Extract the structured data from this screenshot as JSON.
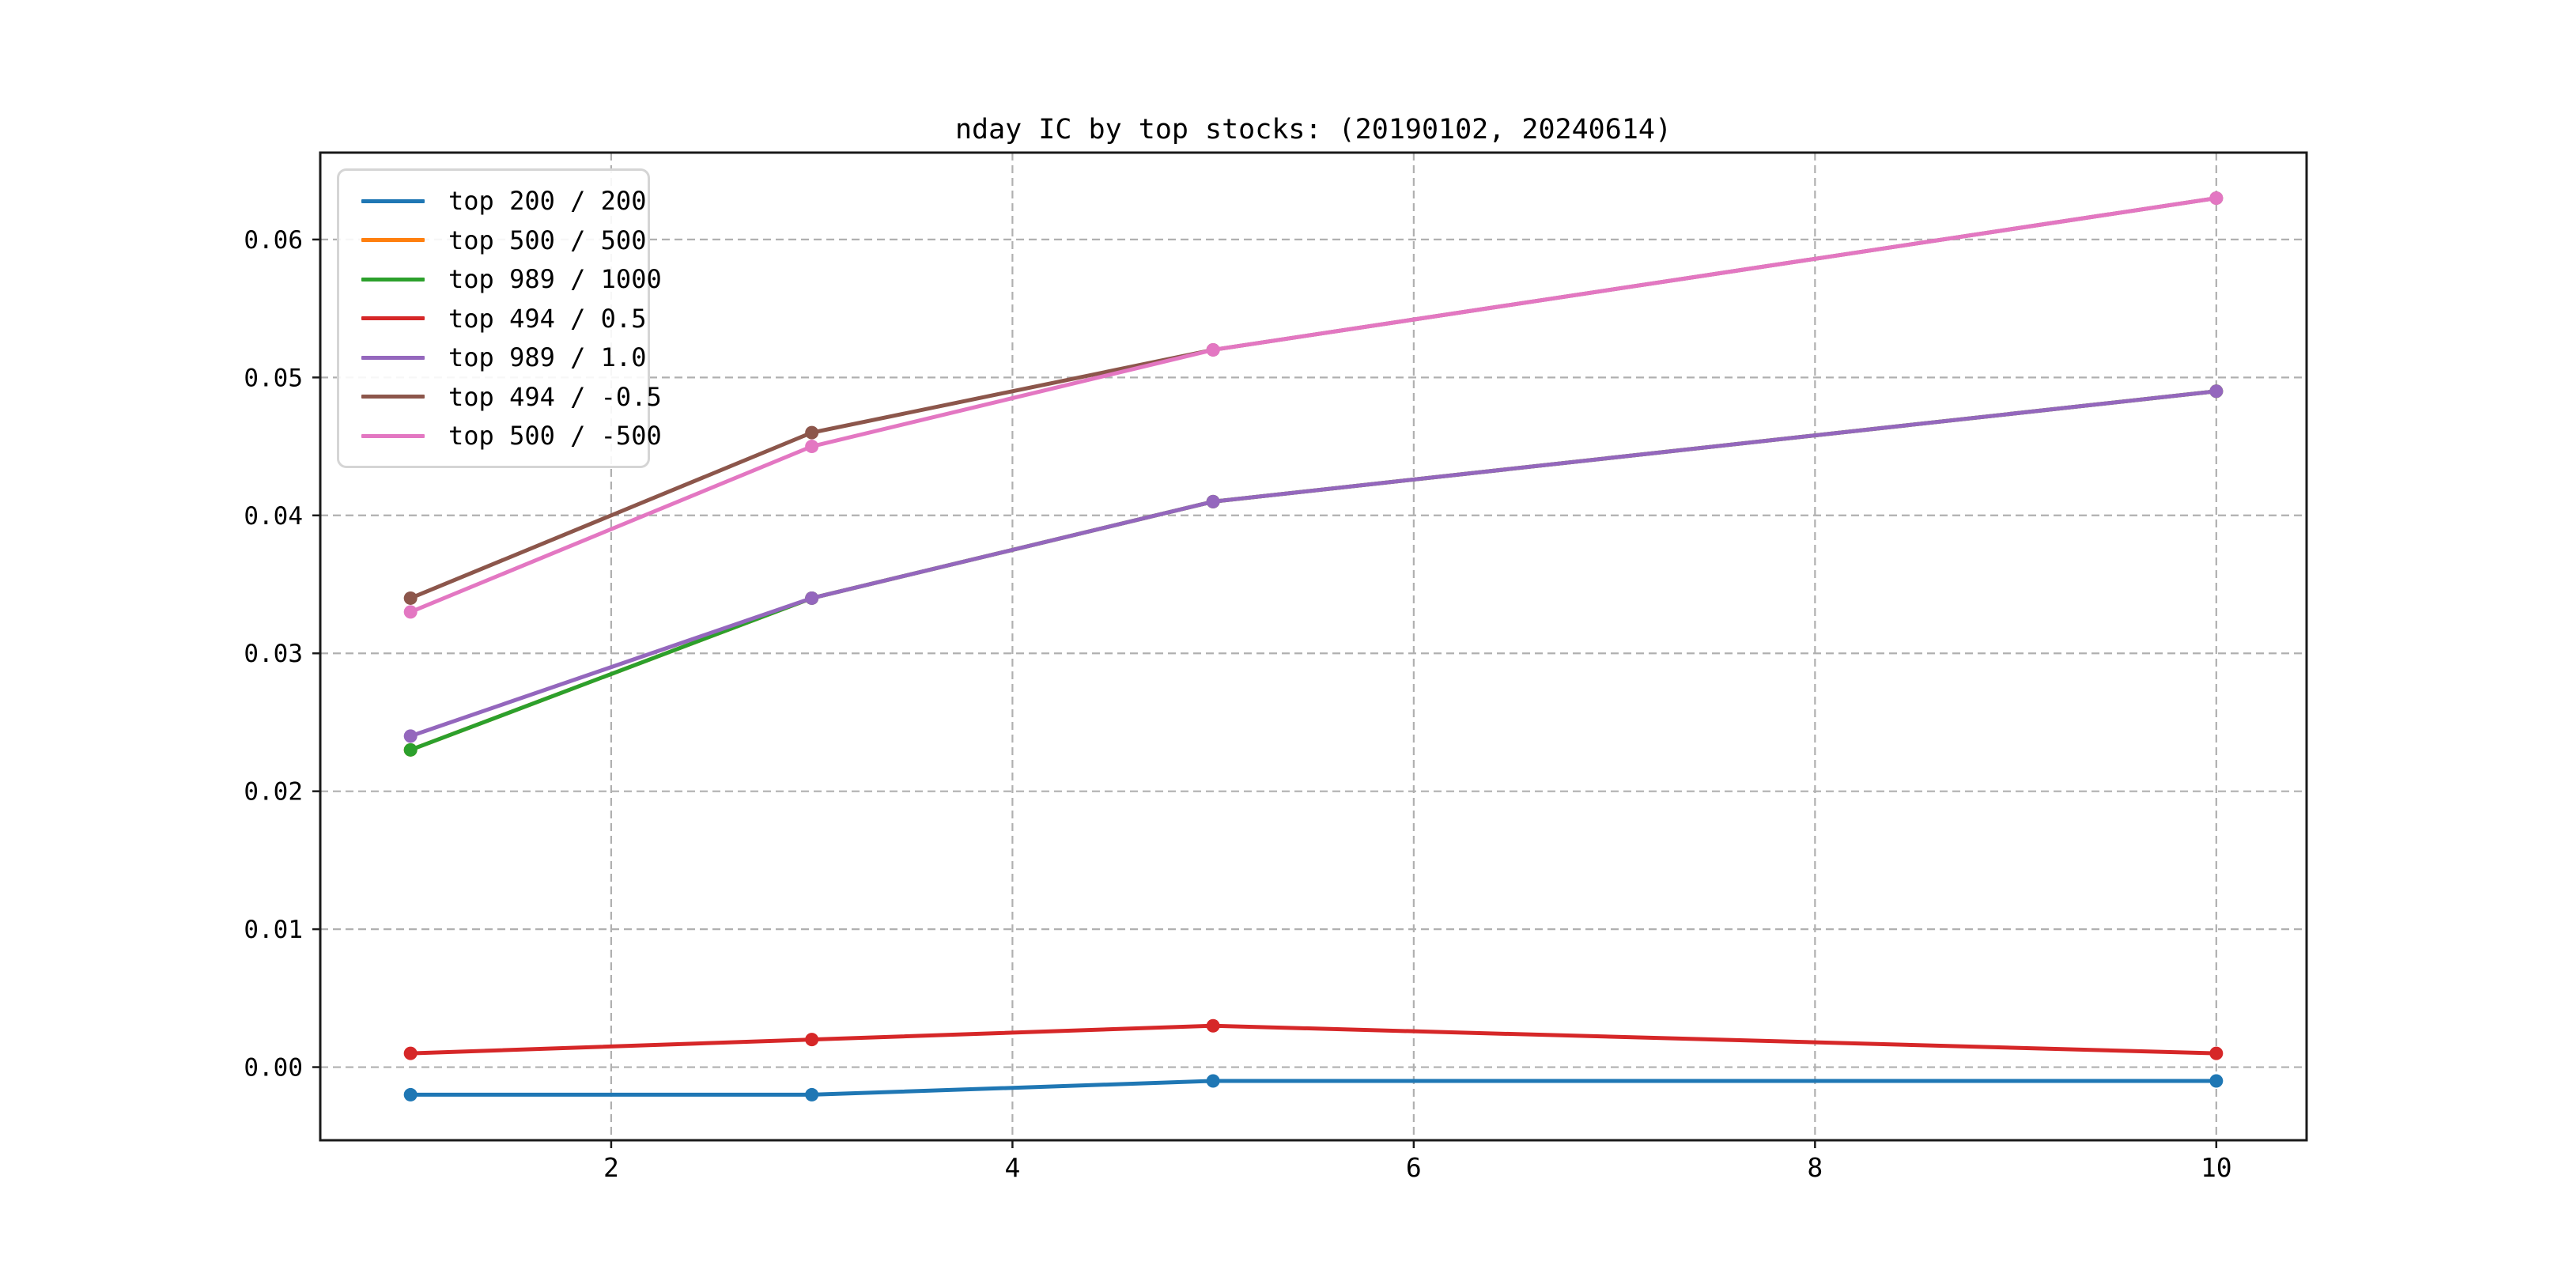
{
  "chart_data": {
    "type": "line",
    "title": "nday IC by top stocks: (20190102, 20240614)",
    "xlabel": "",
    "ylabel": "",
    "x": [
      1,
      3,
      5,
      10
    ],
    "xlim": [
      0.55,
      10.45
    ],
    "ylim": [
      -0.0053,
      0.0663
    ],
    "xticks": [
      2,
      4,
      6,
      8,
      10
    ],
    "xtick_labels": [
      "2",
      "4",
      "6",
      "8",
      "10"
    ],
    "yticks": [
      0.0,
      0.01,
      0.02,
      0.03,
      0.04,
      0.05,
      0.06
    ],
    "ytick_labels": [
      "0.00",
      "0.01",
      "0.02",
      "0.03",
      "0.04",
      "0.05",
      "0.06"
    ],
    "grid": true,
    "legend_position": "upper left",
    "series": [
      {
        "name": "top 200 / 200",
        "color": "#1f77b4",
        "values": [
          -0.002,
          -0.002,
          -0.001,
          -0.001
        ]
      },
      {
        "name": "top 500 / 500",
        "color": "#ff7f0e",
        "values": [
          0.023,
          0.034,
          0.041,
          0.049
        ],
        "occluded": true
      },
      {
        "name": "top 989 / 1000",
        "color": "#2ca02c",
        "values": [
          0.023,
          0.034,
          0.041,
          0.049
        ]
      },
      {
        "name": "top 494 / 0.5",
        "color": "#d62728",
        "values": [
          0.001,
          0.002,
          0.003,
          0.001
        ]
      },
      {
        "name": "top 989 / 1.0",
        "color": "#9467bd",
        "values": [
          0.024,
          0.034,
          0.041,
          0.049
        ]
      },
      {
        "name": "top 494 / -0.5",
        "color": "#8c564b",
        "values": [
          0.034,
          0.046,
          0.052,
          0.063
        ]
      },
      {
        "name": "top 500 / -500",
        "color": "#e377c2",
        "values": [
          0.033,
          0.045,
          0.052,
          0.063
        ]
      }
    ],
    "style": {
      "background": "#ffffff",
      "axis_color": "#1a1a1a",
      "grid_color": "#b0b0b0",
      "legend_border": "#d5d5d5",
      "text_color": "#000000"
    }
  }
}
